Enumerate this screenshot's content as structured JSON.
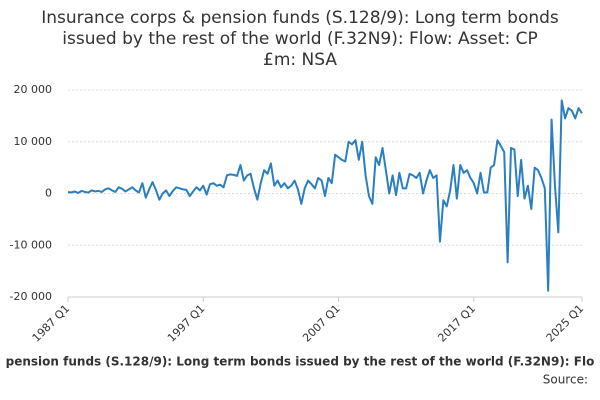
{
  "chart_data": {
    "type": "line",
    "title": [
      "Insurance corps & pension funds (S.128/9): Long term bonds",
      "issued by the rest of the world (F.32N9): Flow: Asset: CP",
      "£m: NSA"
    ],
    "source": "Source:",
    "categories": [
      "1987 Q1",
      null,
      null,
      null,
      null,
      null,
      null,
      null,
      null,
      null,
      null,
      null,
      null,
      null,
      null,
      null,
      null,
      null,
      null,
      null,
      null,
      null,
      null,
      null,
      null,
      null,
      null,
      null,
      null,
      null,
      null,
      null,
      null,
      null,
      null,
      null,
      null,
      null,
      null,
      null,
      "1997 Q1",
      null,
      null,
      null,
      null,
      null,
      null,
      null,
      null,
      null,
      null,
      null,
      null,
      null,
      null,
      null,
      null,
      null,
      null,
      null,
      null,
      null,
      null,
      null,
      null,
      null,
      null,
      null,
      null,
      null,
      null,
      null,
      null,
      null,
      null,
      null,
      null,
      null,
      null,
      null,
      "2007 Q1",
      null,
      null,
      null,
      null,
      null,
      null,
      null,
      null,
      null,
      null,
      null,
      null,
      null,
      null,
      null,
      null,
      null,
      null,
      null,
      null,
      null,
      null,
      null,
      null,
      null,
      null,
      null,
      null,
      null,
      null,
      null,
      null,
      null,
      null,
      null,
      null,
      null,
      null,
      null,
      "2017 Q1",
      null,
      null,
      null,
      null,
      null,
      null,
      null,
      null,
      null,
      null,
      null,
      null,
      null,
      null,
      null,
      null,
      null,
      null,
      null,
      null,
      null,
      null,
      null,
      null,
      null,
      null,
      null,
      null,
      null,
      null,
      null,
      "2025 Q1"
    ],
    "series": [
      {
        "name": "pension funds (S.128/9): Long term bonds issued by the rest of the world (F.32N9): Flo",
        "color": "#2a7fc0",
        "values": [
          300,
          200,
          400,
          100,
          500,
          300,
          200,
          600,
          400,
          500,
          300,
          800,
          1000,
          600,
          300,
          1200,
          900,
          400,
          800,
          1200,
          600,
          200,
          2000,
          -800,
          800,
          2200,
          700,
          -1200,
          0,
          600,
          -500,
          500,
          1200,
          1000,
          800,
          700,
          -500,
          400,
          1200,
          600,
          1500,
          -200,
          1800,
          2000,
          1500,
          1700,
          1200,
          3500,
          3700,
          3600,
          3400,
          5500,
          2500,
          3500,
          3800,
          1000,
          -1200,
          2000,
          4500,
          3800,
          5800,
          1500,
          2500,
          1200,
          2000,
          1000,
          1500,
          2500,
          800,
          -2000,
          1000,
          2500,
          1800,
          1000,
          3000,
          2500,
          -500,
          3000,
          2000,
          7500,
          7000,
          6500,
          6200,
          10000,
          9500,
          10300,
          6500,
          10000,
          3500,
          -500,
          -2000,
          7000,
          5500,
          8800,
          4500,
          0,
          3500,
          -300,
          4000,
          1000,
          1000,
          3800,
          3500,
          3000,
          4000,
          0,
          2500,
          4500,
          3000,
          3500,
          -9300,
          -1300,
          -2500,
          500,
          5500,
          -1000,
          5500,
          4000,
          4500,
          3000,
          2000,
          0,
          4000,
          200,
          200,
          5000,
          5500,
          10300,
          9200,
          8000,
          -13300,
          8800,
          8500,
          -500,
          6500,
          -1000,
          1500,
          -3000,
          5000,
          4500,
          3000,
          1000,
          -18800,
          14300,
          1500,
          -7500,
          18000,
          14500,
          16500,
          16000,
          14500,
          16500,
          15500
        ]
      }
    ],
    "ylim": [
      -20000,
      20000
    ],
    "yticks": [
      {
        "value": 20000,
        "label": "20 000"
      },
      {
        "value": 10000,
        "label": "10 000"
      },
      0,
      {
        "value": -10000,
        "label": "-10 000"
      },
      {
        "value": -20000,
        "label": "-20 000"
      }
    ],
    "grid": true
  }
}
